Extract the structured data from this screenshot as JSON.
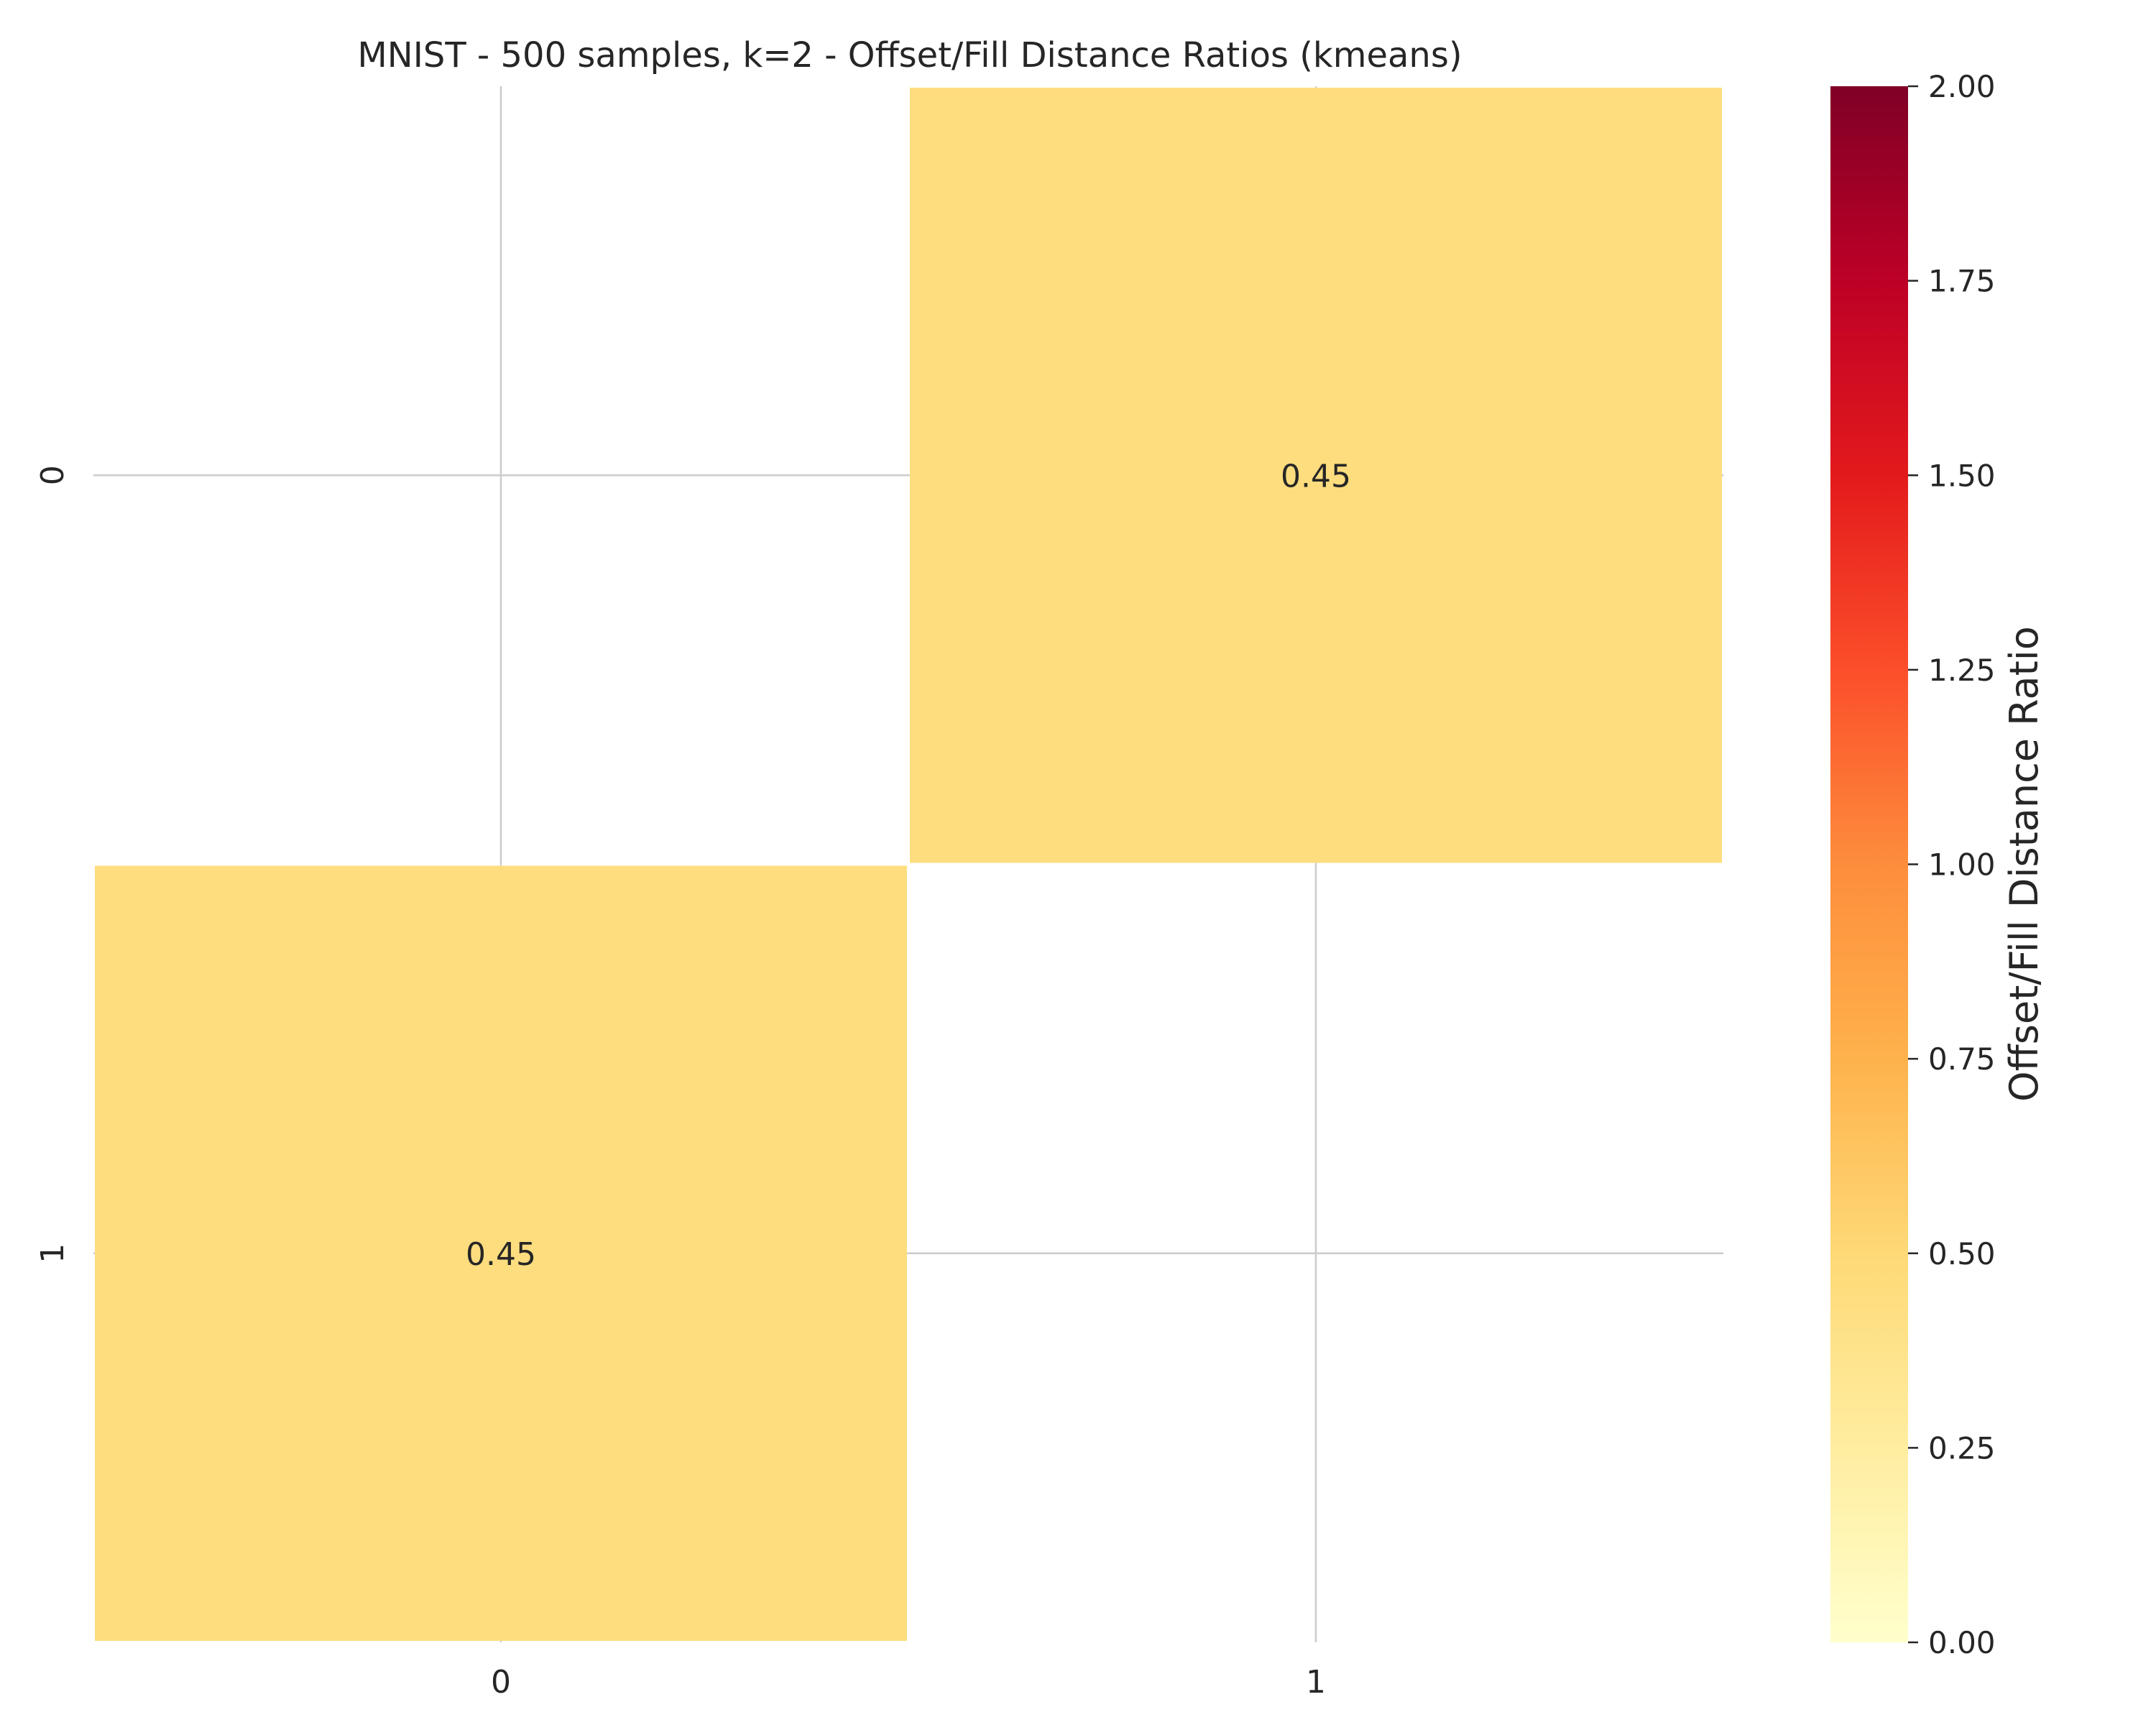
{
  "chart_data": {
    "type": "heatmap",
    "title": "MNIST - 500 samples, k=2 - Offset/Fill Distance Ratios (kmeans)",
    "x_categories": [
      "0",
      "1"
    ],
    "y_categories": [
      "0",
      "1"
    ],
    "values": [
      [
        null,
        0.45
      ],
      [
        0.45,
        null
      ]
    ],
    "cell_labels": [
      [
        "",
        "0.45"
      ],
      [
        "0.45",
        ""
      ]
    ],
    "colorbar": {
      "label": "Offset/Fill Distance Ratio",
      "range": [
        0,
        2
      ],
      "ticks": [
        0,
        0.25,
        0.5,
        0.75,
        1,
        1.25,
        1.5,
        1.75,
        2
      ],
      "tick_labels": [
        "0.00",
        "0.25",
        "0.50",
        "0.75",
        "1.00",
        "1.25",
        "1.50",
        "1.75",
        "2.00"
      ],
      "colormap": "YlOrRd",
      "colors": [
        "#ffffcc",
        "#ffeda0",
        "#fed976",
        "#feb24c",
        "#fd8d3c",
        "#fc4e2a",
        "#e31a1c",
        "#bd0026",
        "#800026"
      ]
    },
    "grid": true,
    "grid_color": "#cccccc",
    "background_color": "#ffffff"
  }
}
